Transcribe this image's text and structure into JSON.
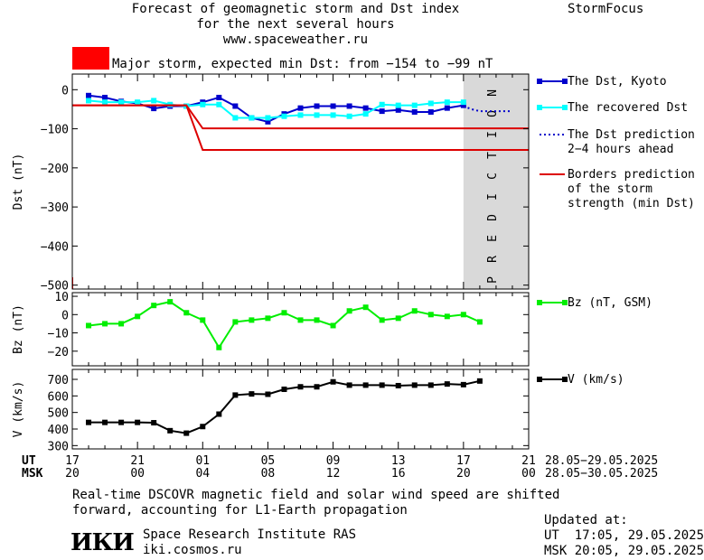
{
  "header": {
    "title_line1": "Forecast of geomagnetic storm and Dst index",
    "title_line2": "for the next several hours",
    "url": "www.spaceweather.ru",
    "brand": "StormFocus",
    "storm_label": "Major storm, expected min Dst: from −154 to −99 nT",
    "storm_color": "#ff0000"
  },
  "footer": {
    "note_line1": "Real-time DSCOVR magnetic field and solar wind speed are shifted",
    "note_line2": "forward, accounting for L1-Earth propagation",
    "logo": "ИКИ",
    "institute": "Space Research Institute RAS",
    "site": "iki.cosmos.ru",
    "updated_label": "Updated at:",
    "updated_ut": "UT  17:05, 29.05.2025",
    "updated_msk": "MSK 20:05, 29.05.2025"
  },
  "chart_data": {
    "type": "line",
    "prediction_label": "PREDICTION",
    "x_axis": {
      "ut_label": "UT",
      "msk_label": "MSK",
      "ut_ticks": [
        "17",
        "21",
        "01",
        "05",
        "09",
        "13",
        "17",
        "21"
      ],
      "msk_ticks": [
        "20",
        "00",
        "04",
        "08",
        "12",
        "16",
        "20",
        "00"
      ],
      "ut_range": "28.05−29.05.2025",
      "msk_range": "28.05−30.05.2025",
      "range_hours": [
        0,
        28
      ],
      "prediction_start_hour": 24
    },
    "panels": [
      {
        "id": "dst",
        "ylabel": "Dst (nT)",
        "ylim": [
          -510,
          40
        ],
        "yticks": [
          0,
          -100,
          -200,
          -300,
          -400,
          -500
        ],
        "ytick_labels": [
          "0",
          "−100",
          "−200",
          "−300",
          "−400",
          "−500"
        ],
        "series": [
          {
            "name": "The Dst, Kyoto",
            "color": "#0000cc",
            "style": "line-square",
            "x": [
              1,
              2,
              3,
              4,
              5,
              6,
              7,
              8,
              9,
              10,
              11,
              12,
              13,
              14,
              15,
              16,
              17,
              18,
              19,
              20,
              21,
              22,
              23,
              24
            ],
            "values": [
              -15,
              -20,
              -30,
              -35,
              -48,
              -42,
              -42,
              -32,
              -20,
              -42,
              -72,
              -82,
              -62,
              -47,
              -42,
              -42,
              -42,
              -47,
              -55,
              -52,
              -57,
              -57,
              -47,
              -40
            ]
          },
          {
            "name": "The recovered Dst",
            "color": "#00ffff",
            "style": "line-square",
            "x": [
              1,
              2,
              3,
              4,
              5,
              6,
              7,
              8,
              9,
              10,
              11,
              12,
              13,
              14,
              15,
              16,
              17,
              18,
              19,
              20,
              21,
              22,
              23,
              24
            ],
            "values": [
              -28,
              -32,
              -32,
              -32,
              -28,
              -38,
              -42,
              -38,
              -38,
              -72,
              -72,
              -72,
              -68,
              -65,
              -65,
              -65,
              -68,
              -62,
              -38,
              -40,
              -40,
              -35,
              -32,
              -32
            ]
          },
          {
            "name": "The Dst prediction\n2−4 hours ahead",
            "color": "#0000cc",
            "style": "dotted",
            "x": [
              24,
              24.5,
              25,
              25.5,
              26,
              26.5,
              27
            ],
            "values": [
              -42,
              -50,
              -55,
              -55,
              -55,
              -55,
              -55
            ]
          },
          {
            "name": "Borders prediction\nof the storm\nstrength (min Dst)",
            "color": "#dd0000",
            "style": "borders",
            "upper": {
              "x": [
                0,
                7,
                8,
                28
              ],
              "values": [
                -40,
                -40,
                -99,
                -99
              ]
            },
            "lower": {
              "x": [
                0,
                7,
                8,
                28
              ],
              "values": [
                -40,
                -40,
                -154,
                -154
              ]
            }
          }
        ]
      },
      {
        "id": "bz",
        "ylabel": "Bz (nT)",
        "ylim": [
          -28,
          12
        ],
        "yticks": [
          10,
          0,
          -10,
          -20
        ],
        "ytick_labels": [
          "10",
          "0",
          "−10",
          "−20"
        ],
        "series": [
          {
            "name": "Bz (nT, GSM)",
            "color": "#00ee00",
            "style": "line-square",
            "x": [
              1,
              2,
              3,
              4,
              5,
              6,
              7,
              8,
              9,
              10,
              11,
              12,
              13,
              14,
              15,
              16,
              17,
              18,
              19,
              20,
              21,
              22,
              23,
              24,
              25
            ],
            "values": [
              -6,
              -5,
              -5,
              -1,
              5,
              7,
              1,
              -3,
              -18,
              -4,
              -3,
              -2,
              1,
              -3,
              -3,
              -6,
              2,
              4,
              -3,
              -2,
              2,
              0,
              -1,
              0,
              -4
            ]
          }
        ]
      },
      {
        "id": "v",
        "ylabel": "V (km/s)",
        "ylim": [
          280,
          760
        ],
        "yticks": [
          700,
          600,
          500,
          400,
          300
        ],
        "ytick_labels": [
          "700",
          "600",
          "500",
          "400",
          "300"
        ],
        "series": [
          {
            "name": "V (km/s)",
            "color": "#000000",
            "style": "line-square",
            "x": [
              1,
              2,
              3,
              4,
              5,
              6,
              7,
              8,
              9,
              10,
              11,
              12,
              13,
              14,
              15,
              16,
              17,
              18,
              19,
              20,
              21,
              22,
              23,
              24,
              25
            ],
            "values": [
              440,
              440,
              440,
              440,
              438,
              390,
              375,
              415,
              490,
              605,
              612,
              610,
              640,
              655,
              655,
              685,
              665,
              665,
              665,
              662,
              665,
              665,
              672,
              668,
              690
            ]
          }
        ]
      }
    ]
  }
}
